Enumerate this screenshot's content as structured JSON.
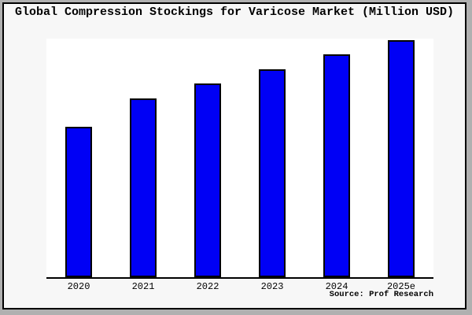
{
  "header": {
    "title": "Global Compression Stockings for Varicose Market (Million USD)"
  },
  "footer": {
    "source_label": "Source: Prof Research"
  },
  "colors": {
    "bar_fill": "#0000f5",
    "bar_border": "#000000",
    "plot_background": "#ffffff",
    "canvas_background": "#f7f7f7",
    "outer_background": "#b0b0b0",
    "frame_border": "#000000",
    "axis_line": "#000000",
    "text": "#000000"
  },
  "chart_data": {
    "type": "bar",
    "title": "Global Compression Stockings for Varicose Market (Million USD)",
    "categories": [
      "2020",
      "2021",
      "2022",
      "2023",
      "2024",
      "2025e"
    ],
    "values": [
      63.5,
      75.4,
      81.7,
      87.7,
      93.9,
      100
    ],
    "values_are_relative_estimates": true,
    "xlabel": "",
    "ylabel": "",
    "ylim": [
      0,
      100.7
    ],
    "y_axis_ticks_visible": false,
    "grid": false,
    "legend_visible": false,
    "bar_color": "#0000f5",
    "annotation": "Source: Prof Research"
  }
}
